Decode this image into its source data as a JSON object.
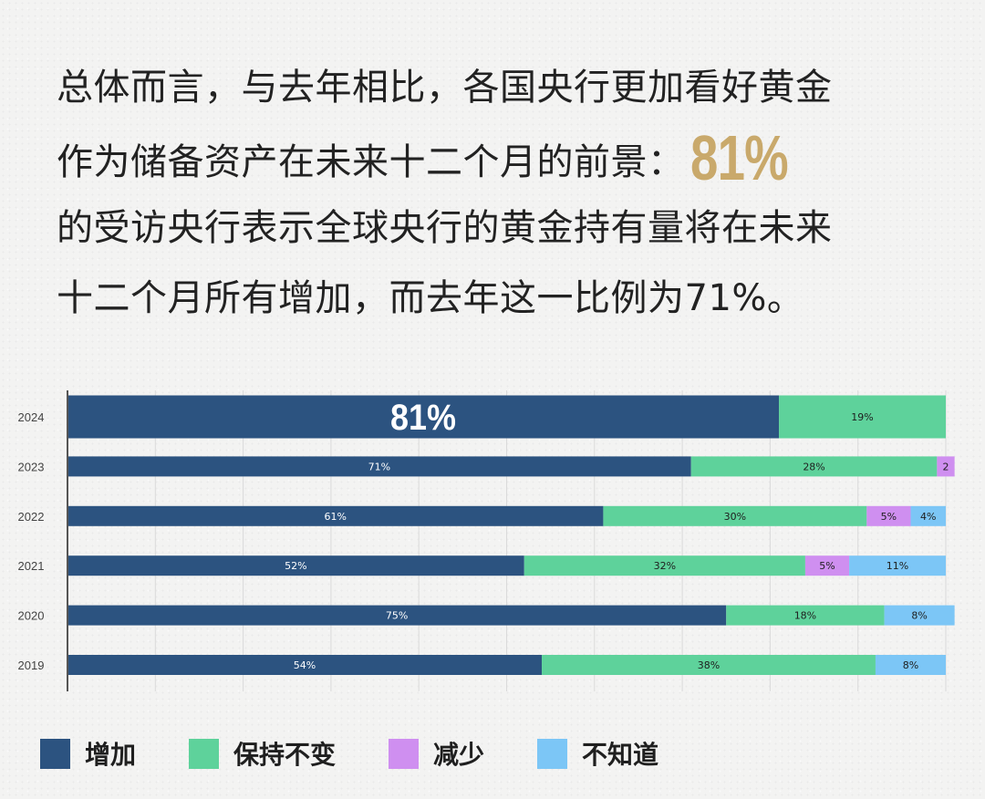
{
  "headline": {
    "line1": "总体而言，与去年相比，各国央行更加看好黄金",
    "line2_text": "作为储备资产在未来十二个月的前景：",
    "line2_pct": "81%",
    "line3": "的受访央行表示全球央行的黄金持有量将在未来",
    "line4": "十二个月所有增加，而去年这一比例为71%。"
  },
  "colors": {
    "increase": "#2c5380",
    "maintain": "#5ed29b",
    "decrease": "#cf8ff0",
    "unknown": "#7cc6f6",
    "gold": "#c9a96b"
  },
  "chart_data": {
    "type": "bar",
    "orientation": "horizontal",
    "stacked": true,
    "categories": [
      "2024",
      "2023",
      "2022",
      "2021",
      "2020",
      "2019"
    ],
    "series": [
      {
        "name": "增加",
        "values": [
          81,
          71,
          61,
          52,
          75,
          54
        ],
        "labels": [
          "81%",
          "71%",
          "61%",
          "52%",
          "75%",
          "54%"
        ],
        "color": "#2c5380"
      },
      {
        "name": "保持不变",
        "values": [
          19,
          28,
          30,
          32,
          18,
          38
        ],
        "labels": [
          "19%",
          "28%",
          "30%",
          "32%",
          "18%",
          "38%"
        ],
        "color": "#5ed29b"
      },
      {
        "name": "减少",
        "values": [
          0,
          2,
          5,
          5,
          0,
          0
        ],
        "labels": [
          "",
          "2",
          "5%",
          "5%",
          "",
          ""
        ],
        "color": "#cf8ff0"
      },
      {
        "name": "不知道",
        "values": [
          0,
          0,
          4,
          11,
          8,
          8
        ],
        "labels": [
          "",
          "",
          "4%",
          "11%",
          "8%",
          "8%"
        ],
        "color": "#7cc6f6"
      }
    ],
    "xlim": [
      0,
      100
    ],
    "grid": true,
    "legend": "bottom",
    "highlight_category": "2024"
  }
}
